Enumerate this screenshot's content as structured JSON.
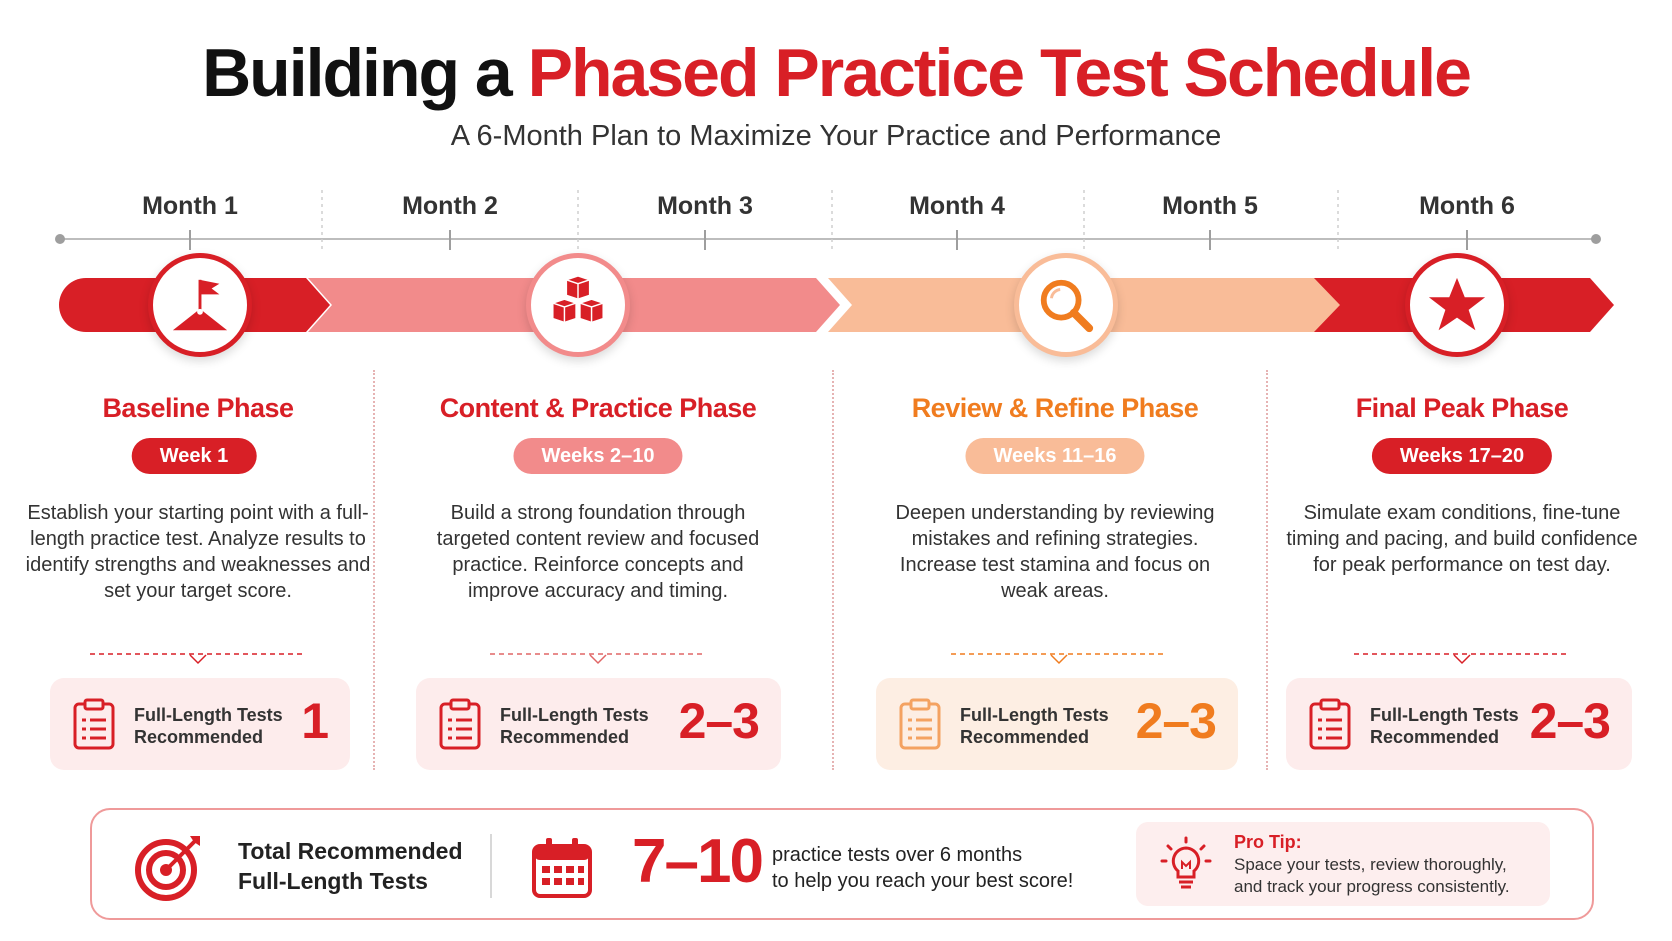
{
  "header": {
    "title_part1": "Building a",
    "title_part2": "Phased Practice Test Schedule",
    "subtitle": "A 6-Month Plan to Maximize Your Practice and Performance"
  },
  "months": [
    "Month 1",
    "Month 2",
    "Month 3",
    "Month 4",
    "Month 5",
    "Month 6"
  ],
  "colors": {
    "red": "#d81f26",
    "pink": "#f28b8b",
    "peach": "#f9bc98",
    "orange": "#f07c1f",
    "card_pink": "#fdecec",
    "card_peach": "#fdeee3"
  },
  "phases": [
    {
      "icon": "flag-on-hill-icon",
      "title": "Baseline Phase",
      "weeks": "Week 1",
      "description": "Establish your starting point with a full-length practice test. Analyze results to identify strengths and weaknesses and set your target score.",
      "card_label": "Full-Length Tests\nRecommended",
      "count": "1"
    },
    {
      "icon": "stacked-cubes-icon",
      "title": "Content & Practice Phase",
      "weeks": "Weeks 2–10",
      "description": "Build a strong foundation through targeted content review and focused practice. Reinforce concepts and improve accuracy and timing.",
      "card_label": "Full-Length Tests\nRecommended",
      "count": "2–3"
    },
    {
      "icon": "magnifier-icon",
      "title": "Review & Refine Phase",
      "weeks": "Weeks 11–16",
      "description": "Deepen understanding by reviewing mistakes and refining strategies. Increase test stamina and focus on weak areas.",
      "card_label": "Full-Length Tests\nRecommended",
      "count": "2–3"
    },
    {
      "icon": "star-icon",
      "title": "Final Peak Phase",
      "weeks": "Weeks 17–20",
      "description": "Simulate exam conditions, fine-tune timing and pacing, and build confidence for peak performance on test day.",
      "card_label": "Full-Length Tests\nRecommended",
      "count": "2–3"
    }
  ],
  "summary": {
    "label": "Total Recommended\nFull-Length Tests",
    "count": "7–10",
    "note": "practice tests over 6 months\nto help you reach your best score!",
    "tip_title": "Pro Tip:",
    "tip_text": "Space your tests, review thoroughly,\nand track your progress consistently."
  }
}
